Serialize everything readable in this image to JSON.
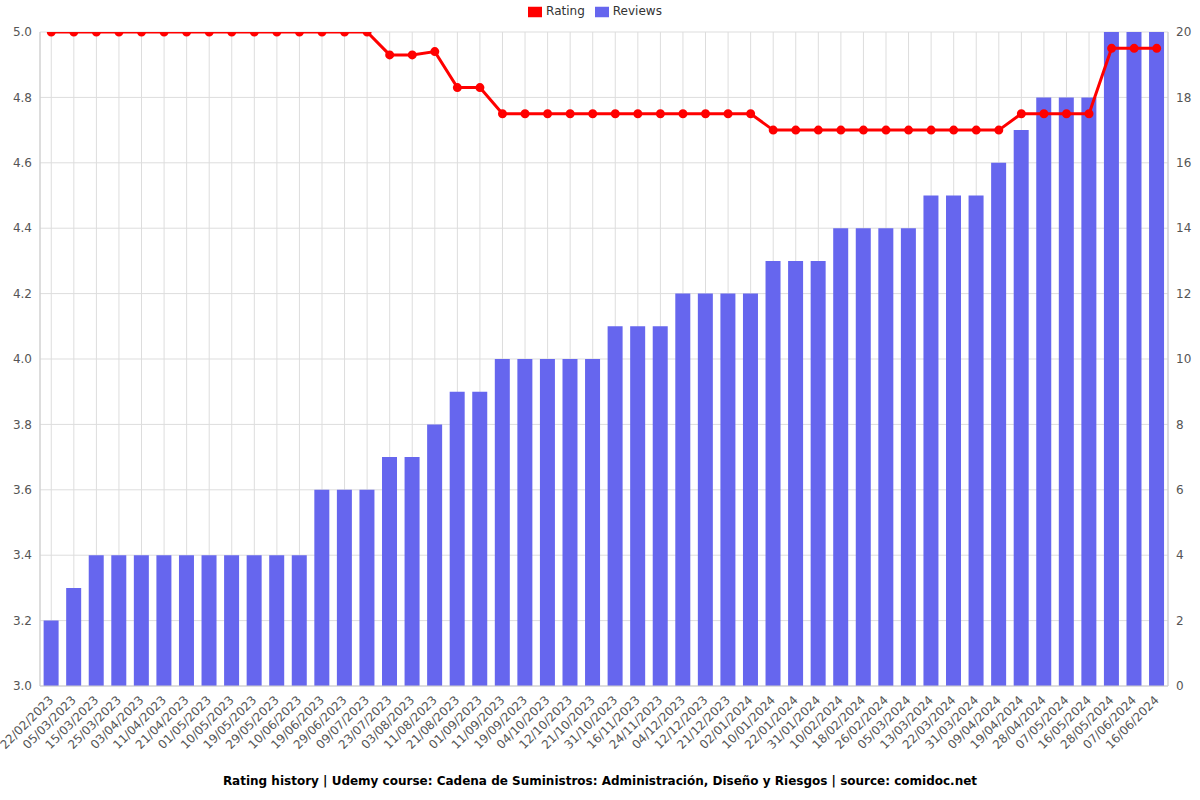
{
  "chart_data": {
    "type": "bar_line",
    "title": "Rating history | Udemy course: Cadena de Suministros: Administración, Diseño y Riesgos | source: comidoc.net",
    "categories": [
      "22/02/2023",
      "05/03/2023",
      "15/03/2023",
      "25/03/2023",
      "03/04/2023",
      "11/04/2023",
      "21/04/2023",
      "01/05/2023",
      "10/05/2023",
      "19/05/2023",
      "29/05/2023",
      "10/06/2023",
      "19/06/2023",
      "29/06/2023",
      "09/07/2023",
      "23/07/2023",
      "03/08/2023",
      "11/08/2023",
      "21/08/2023",
      "01/09/2023",
      "11/09/2023",
      "19/09/2023",
      "04/10/2023",
      "12/10/2023",
      "21/10/2023",
      "31/10/2023",
      "16/11/2023",
      "24/11/2023",
      "04/12/2023",
      "12/12/2023",
      "21/12/2023",
      "02/01/2024",
      "10/01/2024",
      "22/01/2024",
      "31/01/2024",
      "10/02/2024",
      "18/02/2024",
      "26/02/2024",
      "05/03/2024",
      "13/03/2024",
      "22/03/2024",
      "31/03/2024",
      "09/04/2024",
      "19/04/2024",
      "28/04/2024",
      "07/05/2024",
      "16/05/2024",
      "28/05/2024",
      "07/06/2024",
      "16/06/2024"
    ],
    "series": [
      {
        "name": "Rating",
        "type": "line",
        "color": "#ff0000",
        "marker": "circle",
        "axis": "y",
        "values": [
          5,
          5,
          5,
          5,
          5,
          5,
          5,
          5,
          5,
          5,
          5,
          5,
          5,
          5,
          5,
          4.93,
          4.93,
          4.94,
          4.83,
          4.83,
          4.75,
          4.75,
          4.75,
          4.75,
          4.75,
          4.75,
          4.75,
          4.75,
          4.75,
          4.75,
          4.75,
          4.75,
          4.7,
          4.7,
          4.7,
          4.7,
          4.7,
          4.7,
          4.7,
          4.7,
          4.7,
          4.7,
          4.7,
          4.75,
          4.75,
          4.75,
          4.75,
          4.95,
          4.95,
          4.95
        ]
      },
      {
        "name": "Reviews",
        "type": "bar",
        "color": "#6666ee",
        "axis": "y2",
        "values": [
          2,
          3,
          4,
          4,
          4,
          4,
          4,
          4,
          4,
          4,
          4,
          4,
          6,
          6,
          6,
          7,
          7,
          8,
          9,
          9,
          10,
          10,
          10,
          10,
          10,
          11,
          11,
          11,
          12,
          12,
          12,
          12,
          13,
          13,
          13,
          14,
          14,
          14,
          14,
          15,
          15,
          15,
          16,
          17,
          18,
          18,
          18,
          20,
          20,
          20
        ]
      }
    ],
    "ylim": [
      3,
      5
    ],
    "yticks": [
      {
        "value": 3,
        "label": "3.0"
      },
      3.2,
      3.4,
      3.6,
      3.8,
      {
        "value": 4,
        "label": "4.0"
      },
      4.2,
      4.4,
      4.6,
      4.8,
      {
        "value": 5,
        "label": "5.0"
      }
    ],
    "y2lim": [
      0,
      20
    ],
    "y2ticks": [
      0,
      2,
      4,
      6,
      8,
      10,
      12,
      14,
      16,
      18,
      20
    ],
    "grid": true,
    "legend": "top"
  }
}
